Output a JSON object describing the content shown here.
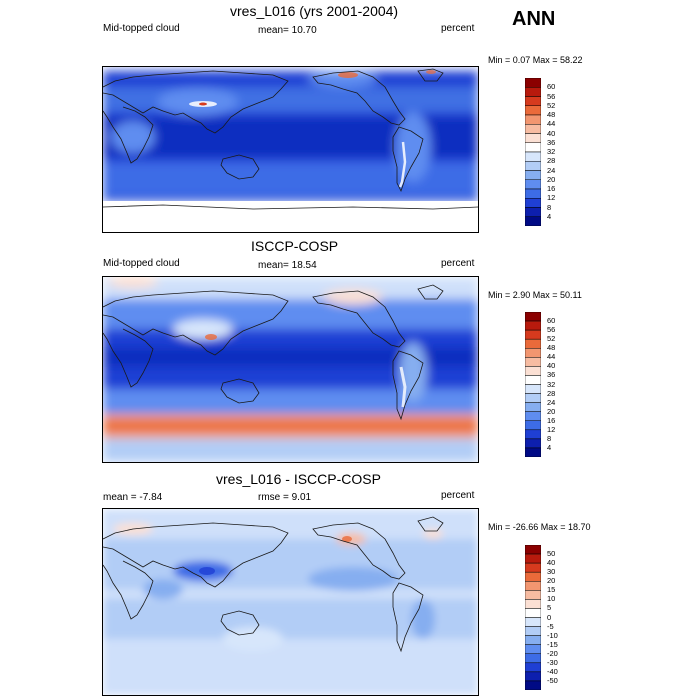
{
  "season": "ANN",
  "panels": [
    {
      "title": "vres_L016 (yrs 2001-2004)",
      "left_label": "Mid-topped cloud",
      "center_label": "mean=  10.70",
      "right_label": "percent",
      "minmax": "Min =   0.07 Max =  58.22",
      "colorbar": {
        "levels": [
          "60",
          "56",
          "52",
          "48",
          "44",
          "40",
          "36",
          "32",
          "28",
          "24",
          "20",
          "16",
          "12",
          "8",
          "4"
        ],
        "colors": [
          "#8b0000",
          "#b81a0d",
          "#d63a1e",
          "#ea6a3a",
          "#f29670",
          "#f7bca2",
          "#fbe0d4",
          "#ffffff",
          "#d7e6fb",
          "#b2cdf6",
          "#86aef0",
          "#5f8df0",
          "#3d6ce6",
          "#1f3fd4",
          "#0d1fae",
          "#000a85"
        ]
      }
    },
    {
      "title": "ISCCP-COSP",
      "left_label": "Mid-topped cloud",
      "center_label": "mean=  18.54",
      "right_label": "percent",
      "minmax": "Min =   2.90 Max =  50.11",
      "colorbar": {
        "levels": [
          "60",
          "56",
          "52",
          "48",
          "44",
          "40",
          "36",
          "32",
          "28",
          "24",
          "20",
          "16",
          "12",
          "8",
          "4"
        ],
        "colors": [
          "#8b0000",
          "#b81a0d",
          "#d63a1e",
          "#ea6a3a",
          "#f29670",
          "#f7bca2",
          "#fbe0d4",
          "#ffffff",
          "#d7e6fb",
          "#b2cdf6",
          "#86aef0",
          "#5f8df0",
          "#3d6ce6",
          "#1f3fd4",
          "#0d1fae",
          "#000a85"
        ]
      }
    },
    {
      "title": "vres_L016 - ISCCP-COSP",
      "left_label": "mean =  -7.84",
      "center_label": "rmse =   9.01",
      "right_label": "percent",
      "minmax": "Min = -26.66 Max =  18.70",
      "colorbar": {
        "levels": [
          "50",
          "40",
          "30",
          "20",
          "15",
          "10",
          "5",
          "0",
          "-5",
          "-10",
          "-15",
          "-20",
          "-30",
          "-40",
          "-50"
        ],
        "colors": [
          "#8b0000",
          "#b81a0d",
          "#d63a1e",
          "#ea6a3a",
          "#f29670",
          "#f7bca2",
          "#fbe0d4",
          "#ffffff",
          "#d7e6fb",
          "#b2cdf6",
          "#86aef0",
          "#5f8df0",
          "#3d6ce6",
          "#1f3fd4",
          "#0d1fae",
          "#000a85"
        ]
      }
    }
  ],
  "palette": {
    "deep_blue": "#0f2fc0",
    "mid_blue": "#3f6fe3",
    "light_blue": "#8db2f0",
    "pale_blue": "#cfe0fa",
    "pale_orange": "#fbd9c4",
    "orange": "#ef8a5a",
    "red": "#c8301a",
    "coast": "#1a1a1a"
  }
}
